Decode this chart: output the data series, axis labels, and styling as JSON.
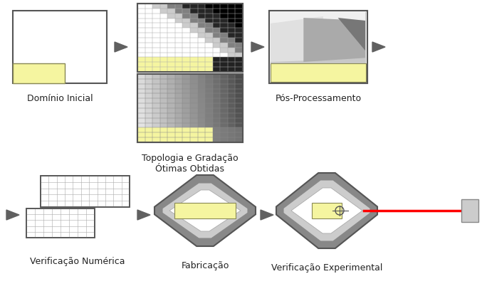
{
  "bg_color": "#ffffff",
  "box_edge_color": "#555555",
  "yellow_color": "#f5f5a0",
  "arrow_color": "#606060",
  "labels": {
    "dominio": "Domínio Inicial",
    "topologia": "Topologia e Gradação\nÓtimas Obtidas",
    "pos_proc": "Pós-Processamento",
    "verif_num": "Verificação Numérica",
    "fabricacao": "Fabricação",
    "verif_exp": "Verificação Experimental"
  },
  "label_fontsize": 9.0,
  "fig_width": 6.77,
  "fig_height": 4.23,
  "dpi": 100
}
